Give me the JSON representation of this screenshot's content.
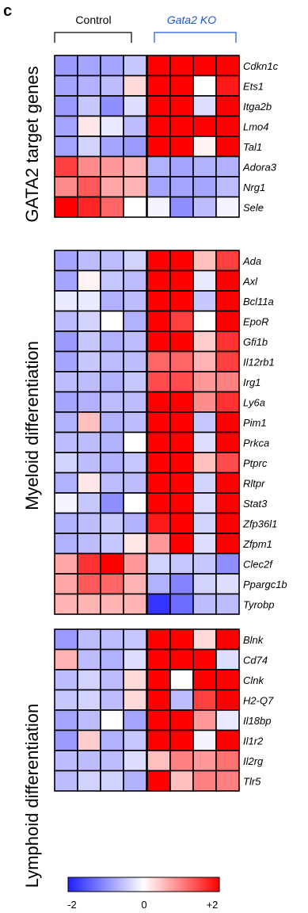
{
  "panel_label": "c",
  "chart_data": {
    "type": "heatmap",
    "groups": [
      {
        "label": "Control",
        "color": "#000000",
        "italic": false
      },
      {
        "label": "Gata2 KO",
        "color": "#1a56d6",
        "italic": true
      }
    ],
    "colorbar": {
      "ticks": [
        "-2",
        "0",
        "+2"
      ],
      "range": [
        -2,
        2
      ],
      "colors": {
        "low": "#1f1fff",
        "mid": "#ffffff",
        "high": "#ff0000"
      }
    },
    "sections": [
      {
        "title": "GATA2 target genes",
        "rows": [
          {
            "gene": "Cdkn1c",
            "values": [
              -0.9,
              -0.8,
              -0.8,
              -0.5,
              2,
              2,
              2,
              2
            ]
          },
          {
            "gene": "Ets1",
            "values": [
              -0.8,
              -0.7,
              -0.6,
              0.3,
              2,
              2,
              0.0,
              1.8
            ]
          },
          {
            "gene": "Itga2b",
            "values": [
              -0.9,
              -0.5,
              -1.0,
              -0.3,
              2,
              2,
              -0.3,
              2
            ]
          },
          {
            "gene": "Lmo4",
            "values": [
              -0.8,
              0.2,
              -0.2,
              -0.6,
              2,
              2,
              2,
              2
            ]
          },
          {
            "gene": "Tal1",
            "values": [
              -0.8,
              -0.4,
              -0.8,
              -0.9,
              2,
              2,
              0.1,
              2
            ]
          },
          {
            "gene": "Adora3",
            "values": [
              1.5,
              0.9,
              0.8,
              0.6,
              -0.7,
              -0.8,
              -0.7,
              -0.7
            ]
          },
          {
            "gene": "Nrg1",
            "values": [
              0.9,
              1.3,
              0.7,
              0.6,
              -0.8,
              -0.8,
              -0.8,
              -0.6
            ]
          },
          {
            "gene": "Sele",
            "values": [
              2,
              1.7,
              1.2,
              0.0,
              -0.1,
              -1.0,
              -0.6,
              -0.1
            ]
          }
        ]
      },
      {
        "title": "Myeloid differentiation",
        "rows": [
          {
            "gene": "Ada",
            "values": [
              -0.8,
              -0.6,
              -0.6,
              -0.4,
              2,
              2,
              0.5,
              1.5
            ]
          },
          {
            "gene": "Axl",
            "values": [
              -0.8,
              0.1,
              -0.5,
              -0.6,
              2,
              2,
              -0.2,
              2
            ]
          },
          {
            "gene": "Bcl11a",
            "values": [
              -0.2,
              -0.2,
              -0.7,
              -0.6,
              2,
              2,
              -0.5,
              2
            ]
          },
          {
            "gene": "EpoR",
            "values": [
              -0.6,
              -0.4,
              0.0,
              -0.7,
              2,
              1.5,
              0.0,
              2
            ]
          },
          {
            "gene": "Gfi1b",
            "values": [
              -0.9,
              -0.5,
              -0.7,
              -0.6,
              2,
              2,
              0.4,
              1.6
            ]
          },
          {
            "gene": "Il12rb1",
            "values": [
              -0.8,
              -0.5,
              -0.6,
              -0.6,
              1.2,
              1.2,
              0.6,
              1.5
            ]
          },
          {
            "gene": "Irg1",
            "values": [
              -0.6,
              -0.6,
              -0.7,
              -0.5,
              1.4,
              1.4,
              0.8,
              1.0
            ]
          },
          {
            "gene": "Ly6a",
            "values": [
              -0.8,
              -0.7,
              -0.6,
              -0.6,
              2,
              2,
              0.9,
              1.6
            ]
          },
          {
            "gene": "Pim1",
            "values": [
              -0.7,
              0.5,
              -0.7,
              -0.6,
              2,
              2,
              -0.5,
              2
            ]
          },
          {
            "gene": "Prkca",
            "values": [
              -0.6,
              -0.6,
              -0.7,
              0.0,
              2,
              2,
              -0.3,
              2
            ]
          },
          {
            "gene": "Ptprc",
            "values": [
              -0.4,
              -0.6,
              -0.7,
              -0.5,
              2,
              2,
              0.5,
              1.4
            ]
          },
          {
            "gene": "Rltpr",
            "values": [
              -0.7,
              0.2,
              -0.6,
              -0.6,
              2,
              2,
              -0.4,
              2
            ]
          },
          {
            "gene": "Stat3",
            "values": [
              -0.1,
              -0.5,
              -1.0,
              0.0,
              2,
              2,
              -0.3,
              2
            ]
          },
          {
            "gene": "Zfp36l1",
            "values": [
              -0.7,
              -0.6,
              -0.5,
              -0.7,
              1.8,
              2,
              -0.4,
              2
            ]
          },
          {
            "gene": "Zfpm1",
            "values": [
              -0.7,
              -0.6,
              -0.5,
              0.2,
              0.8,
              2,
              -0.3,
              2
            ]
          },
          {
            "gene": "Clec2f",
            "values": [
              0.7,
              1.6,
              2,
              0.8,
              -0.4,
              -0.5,
              -0.5,
              -1.0
            ]
          },
          {
            "gene": "Ppargc1b",
            "values": [
              0.7,
              1.3,
              1.2,
              0.6,
              -0.7,
              -1.1,
              -0.4,
              -0.3
            ]
          },
          {
            "gene": "Tyrobp",
            "values": [
              0.6,
              0.6,
              0.6,
              0.6,
              -1.8,
              -1.3,
              -0.6,
              -0.6
            ]
          }
        ]
      },
      {
        "title": "Lymphoid differentiation",
        "rows": [
          {
            "gene": "Blnk",
            "values": [
              -0.9,
              -0.6,
              -0.6,
              -0.5,
              2,
              2,
              0.3,
              2
            ]
          },
          {
            "gene": "Cd74",
            "values": [
              0.6,
              -0.6,
              -0.7,
              -0.3,
              2,
              2,
              2,
              -0.3
            ]
          },
          {
            "gene": "Clnk",
            "values": [
              -0.6,
              -0.4,
              -0.6,
              0.3,
              2,
              0.0,
              2,
              2
            ]
          },
          {
            "gene": "H2-Q7",
            "values": [
              -0.5,
              -0.4,
              -0.6,
              0.3,
              2,
              -0.6,
              1.5,
              2
            ]
          },
          {
            "gene": "Il18bp",
            "values": [
              -0.8,
              -0.6,
              0.0,
              -0.8,
              2,
              2,
              0.8,
              -0.2
            ]
          },
          {
            "gene": "Il1r2",
            "values": [
              -0.9,
              0.4,
              -0.7,
              -0.5,
              2,
              2,
              -0.1,
              2
            ]
          },
          {
            "gene": "Il2rg",
            "values": [
              -0.6,
              -0.6,
              -0.6,
              -0.3,
              0.5,
              1.0,
              0.8,
              1.1
            ]
          },
          {
            "gene": "Tlr5",
            "values": [
              -0.6,
              -0.4,
              -0.4,
              -0.7,
              2,
              0.5,
              1.0,
              1.0
            ]
          }
        ]
      }
    ]
  }
}
